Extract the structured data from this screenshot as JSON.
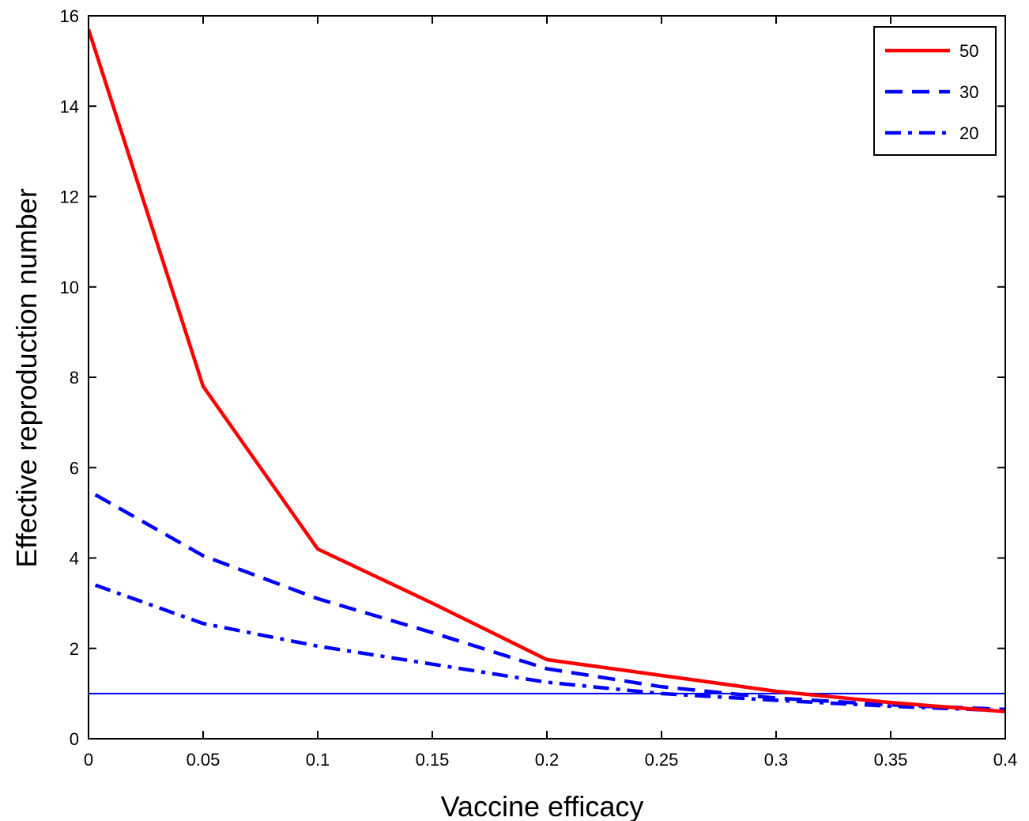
{
  "chart_data": {
    "type": "line",
    "title": "",
    "xlabel": "Vaccine efficacy",
    "ylabel": "Effective reproduction number",
    "xlim": [
      0,
      0.4
    ],
    "ylim": [
      0,
      16
    ],
    "xticks": [
      0,
      0.05,
      0.1,
      0.15,
      0.2,
      0.25,
      0.3,
      0.35,
      0.4
    ],
    "xtick_labels": [
      "0",
      "0.05",
      "0.1",
      "0.15",
      "0.2",
      "0.25",
      "0.3",
      "0.35",
      "0.4"
    ],
    "yticks": [
      0,
      2,
      4,
      6,
      8,
      10,
      12,
      14,
      16
    ],
    "ytick_labels": [
      "0",
      "2",
      "4",
      "6",
      "8",
      "10",
      "12",
      "14",
      "16"
    ],
    "grid": false,
    "legend_position": "top-right",
    "series": [
      {
        "name": "50",
        "color": "#ff0000",
        "style": "solid",
        "x": [
          0,
          0.05,
          0.1,
          0.15,
          0.2,
          0.25,
          0.3,
          0.35,
          0.4
        ],
        "y": [
          15.7,
          7.8,
          4.2,
          3.0,
          1.75,
          1.4,
          1.05,
          0.8,
          0.6
        ]
      },
      {
        "name": "30",
        "color": "#0000ff",
        "style": "dashed",
        "x": [
          0.003,
          0.05,
          0.1,
          0.15,
          0.2,
          0.25,
          0.3,
          0.35,
          0.4
        ],
        "y": [
          5.4,
          4.05,
          3.1,
          2.35,
          1.55,
          1.15,
          0.9,
          0.75,
          0.65
        ]
      },
      {
        "name": "20",
        "color": "#0000ff",
        "style": "dashdot",
        "x": [
          0.003,
          0.05,
          0.1,
          0.15,
          0.2,
          0.25,
          0.3,
          0.35,
          0.4
        ],
        "y": [
          3.4,
          2.55,
          2.05,
          1.65,
          1.25,
          1.0,
          0.85,
          0.72,
          0.62
        ]
      }
    ],
    "reference_line": {
      "y": 1,
      "color": "#0000ff"
    }
  }
}
